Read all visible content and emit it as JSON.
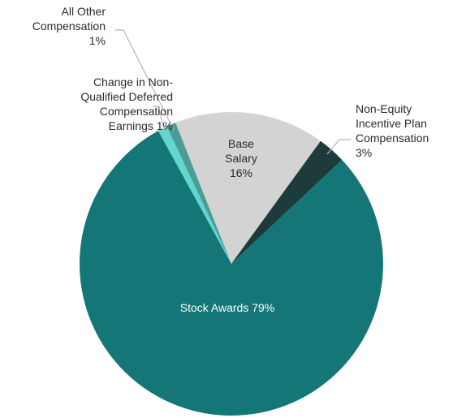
{
  "chart_data": {
    "type": "pie",
    "categories": [
      "Base Salary",
      "Non-Equity Incentive Plan Compensation",
      "Stock Awards",
      "Change in Non-Qualified Deferred Compensation Earnings",
      "All Other Compensation"
    ],
    "values": [
      16,
      3,
      79,
      1,
      1
    ],
    "value_labels": [
      "16%",
      "3%",
      "79%",
      "1%",
      "1%"
    ],
    "colors": [
      "#d3d3d3",
      "#1e3b3b",
      "#147676",
      "#62d6cf",
      "#4b9b97"
    ]
  }
}
